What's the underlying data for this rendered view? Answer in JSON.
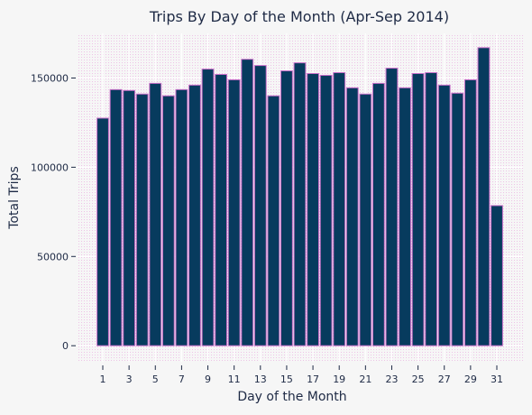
{
  "chart_data": {
    "type": "bar",
    "title": "Trips By Day of the Month (Apr-Sep 2014)",
    "xlabel": "Day of the Month",
    "ylabel": "Total Trips",
    "categories": [
      1,
      2,
      3,
      4,
      5,
      6,
      7,
      8,
      9,
      10,
      11,
      12,
      13,
      14,
      15,
      16,
      17,
      18,
      19,
      20,
      21,
      22,
      23,
      24,
      25,
      26,
      27,
      28,
      29,
      30,
      31
    ],
    "values": [
      127500,
      143500,
      143000,
      141000,
      147000,
      140000,
      143500,
      146000,
      155000,
      152000,
      149000,
      160500,
      157000,
      140000,
      154000,
      158500,
      152500,
      151500,
      153000,
      144500,
      141000,
      147000,
      155500,
      144500,
      152500,
      153000,
      146000,
      141500,
      149000,
      167000,
      78500
    ],
    "xticks": [
      1,
      3,
      5,
      7,
      9,
      11,
      13,
      15,
      17,
      19,
      21,
      23,
      25,
      27,
      29,
      31
    ],
    "yticks": [
      0,
      50000,
      100000,
      150000
    ],
    "ylim": [
      -9000,
      175000
    ],
    "grid": true,
    "colors": {
      "bar_fill": "#073b5e",
      "bar_edge": "#c86fc9",
      "grid": "#e88ee0",
      "text": "#1e2a45",
      "background": "#f6f6f6"
    }
  }
}
